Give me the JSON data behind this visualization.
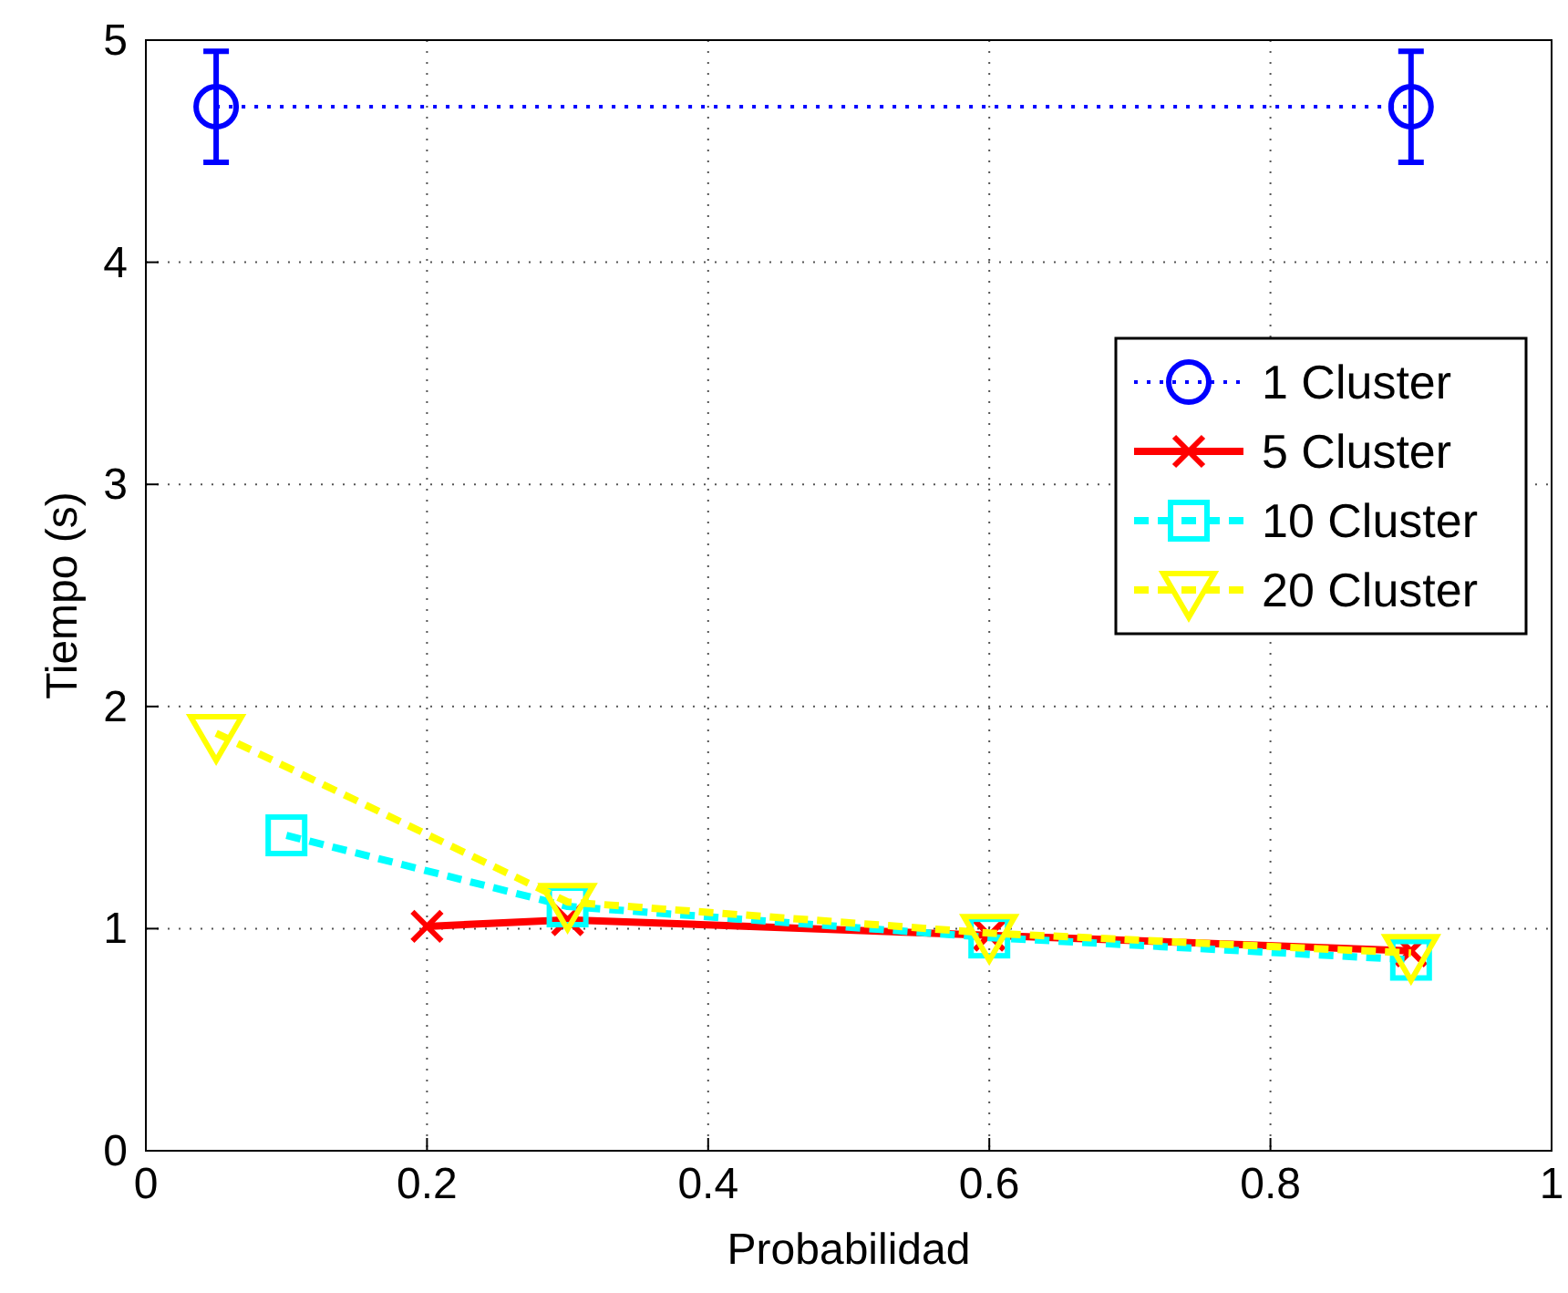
{
  "chart_data": {
    "type": "line",
    "xlabel": "Probabilidad",
    "ylabel": "Tiempo (s)",
    "xlim": [
      0,
      1
    ],
    "xticks": [
      0,
      0.2,
      0.4,
      0.6,
      0.8,
      1
    ],
    "ylim": [
      0,
      5
    ],
    "yticks": [
      0,
      1,
      2,
      3,
      4,
      5
    ],
    "grid": true,
    "legend": "right",
    "series": [
      {
        "name": "1 Cluster",
        "color": "#0000ff",
        "x": [
          0.05,
          0.9
        ],
        "values": [
          4.7,
          4.7
        ],
        "errors": [
          0.25,
          0.25
        ],
        "marker": "circle",
        "line_style": "dotted"
      },
      {
        "name": "5 Cluster",
        "color": "#ff0000",
        "x": [
          0.2,
          0.3,
          0.6,
          0.9
        ],
        "values": [
          1.01,
          1.04,
          0.97,
          0.9
        ],
        "marker": "cross",
        "line_style": "solid"
      },
      {
        "name": "10 Cluster",
        "color": "#00ffff",
        "x": [
          0.1,
          0.3,
          0.6,
          0.9
        ],
        "values": [
          1.42,
          1.1,
          0.96,
          0.86
        ],
        "marker": "square",
        "line_style": "dashed"
      },
      {
        "name": "20 Cluster",
        "color": "#ffff00",
        "x": [
          0.05,
          0.3,
          0.6,
          0.9
        ],
        "values": [
          1.88,
          1.12,
          0.98,
          0.89
        ],
        "marker": "triangle",
        "line_style": "dashed"
      }
    ]
  }
}
